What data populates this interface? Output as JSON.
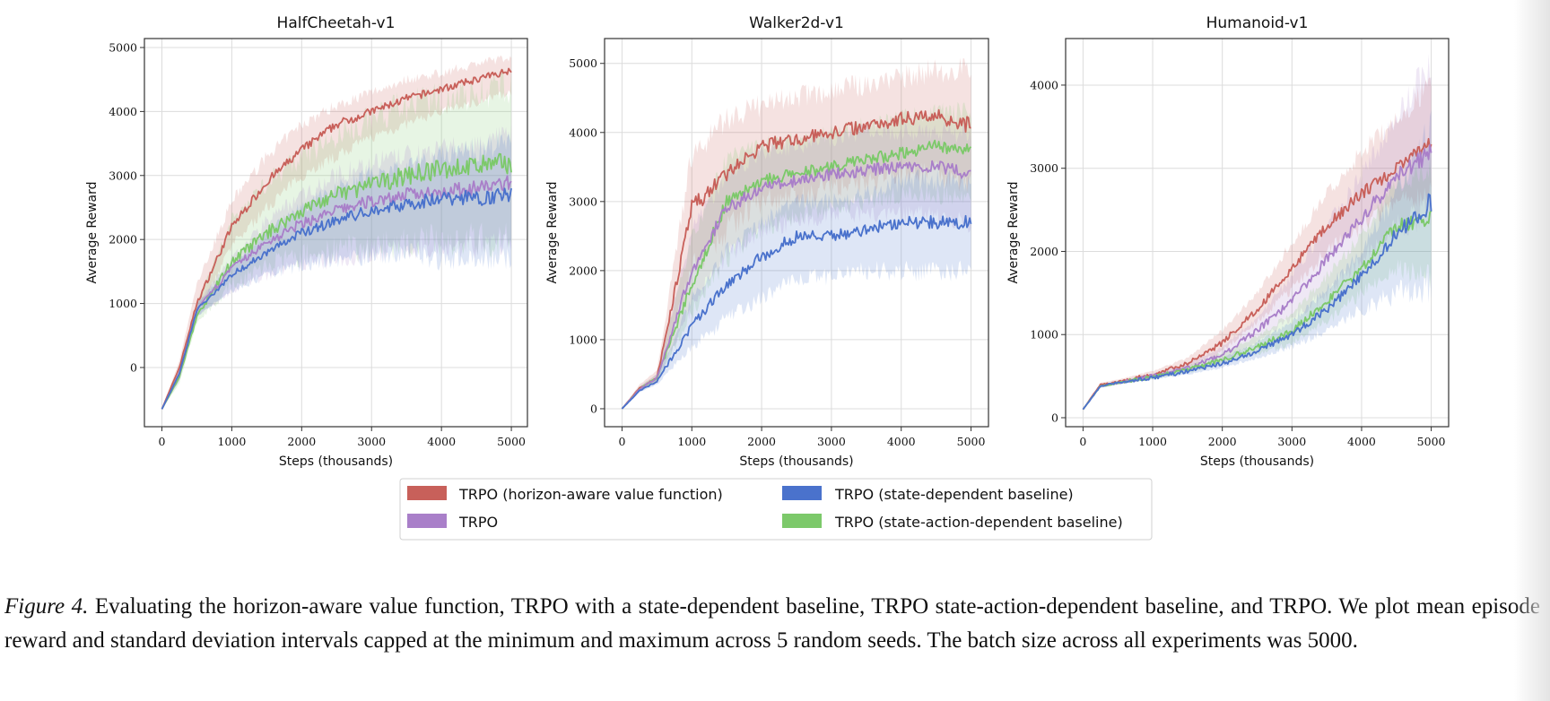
{
  "colors": {
    "horizon": "#c8605a",
    "trpo": "#a97fc9",
    "state": "#4a72cc",
    "state_action": "#7cc96a"
  },
  "legend": {
    "items": [
      {
        "key": "horizon",
        "label": "TRPO (horizon-aware value function)"
      },
      {
        "key": "trpo",
        "label": "TRPO"
      },
      {
        "key": "state",
        "label": "TRPO (state-dependent baseline)"
      },
      {
        "key": "state_action",
        "label": "TRPO (state-action-dependent baseline)"
      }
    ]
  },
  "caption": {
    "label": "Figure 4.",
    "text": "Evaluating the horizon-aware value function, TRPO with a state-dependent baseline, TRPO state-action-dependent baseline, and TRPO. We plot mean episode reward and standard deviation intervals capped at the minimum and maximum across 5 random seeds. The batch size across all experiments was 5000."
  },
  "chart_data": [
    {
      "type": "line",
      "title": "HalfCheetah-v1",
      "xlabel": "Steps (thousands)",
      "ylabel": "Average Reward",
      "xlim": [
        -250,
        5230
      ],
      "ylim": [
        -925,
        5140
      ],
      "xticks": [
        0,
        1000,
        2000,
        3000,
        4000,
        5000
      ],
      "yticks": [
        0,
        1000,
        2000,
        3000,
        4000,
        5000
      ],
      "grid": true,
      "x": [
        0,
        250,
        500,
        1000,
        1500,
        2000,
        2500,
        3000,
        3500,
        4000,
        4500,
        5000
      ],
      "series": [
        {
          "key": "horizon",
          "name": "TRPO (horizon-aware value function)",
          "mean": [
            -650,
            0,
            1000,
            2200,
            2900,
            3400,
            3800,
            4000,
            4200,
            4350,
            4500,
            4650
          ],
          "lower": [
            -650,
            -100,
            800,
            1900,
            2500,
            3000,
            3300,
            3600,
            3800,
            4000,
            4150,
            4300
          ],
          "upper": [
            -650,
            100,
            1300,
            2600,
            3300,
            3800,
            4100,
            4300,
            4500,
            4600,
            4750,
            4850
          ]
        },
        {
          "key": "state_action",
          "name": "TRPO (state-action-dependent baseline)",
          "mean": [
            -650,
            -150,
            800,
            1650,
            2100,
            2450,
            2700,
            2850,
            3000,
            3100,
            3150,
            3200
          ],
          "lower": [
            -650,
            -250,
            700,
            1300,
            1600,
            1750,
            1850,
            1900,
            1950,
            2000,
            2000,
            2000
          ],
          "upper": [
            -650,
            -50,
            1000,
            2300,
            2900,
            3300,
            3600,
            3900,
            4100,
            4200,
            4300,
            4400
          ]
        },
        {
          "key": "trpo",
          "name": "TRPO",
          "mean": [
            -650,
            -100,
            900,
            1550,
            1950,
            2250,
            2450,
            2600,
            2700,
            2750,
            2800,
            2900
          ],
          "lower": [
            -650,
            -200,
            800,
            1200,
            1450,
            1600,
            1700,
            1800,
            1850,
            1900,
            1900,
            1950
          ],
          "upper": [
            -650,
            0,
            1000,
            1700,
            2300,
            2700,
            3000,
            3200,
            3300,
            3400,
            3500,
            3600
          ]
        },
        {
          "key": "state",
          "name": "TRPO (state-dependent baseline)",
          "mean": [
            -650,
            -100,
            900,
            1450,
            1800,
            2100,
            2300,
            2450,
            2550,
            2650,
            2650,
            2700
          ],
          "lower": [
            -650,
            -200,
            800,
            1200,
            1450,
            1600,
            1700,
            1750,
            1800,
            1700,
            1700,
            1750
          ],
          "upper": [
            -650,
            0,
            1000,
            1600,
            2100,
            2500,
            2800,
            3000,
            3100,
            3300,
            3400,
            3500
          ]
        }
      ]
    },
    {
      "type": "line",
      "title": "Walker2d-v1",
      "xlabel": "Steps (thousands)",
      "ylabel": "Average Reward",
      "xlim": [
        -250,
        5250
      ],
      "ylim": [
        -260,
        5360
      ],
      "xticks": [
        0,
        1000,
        2000,
        3000,
        4000,
        5000
      ],
      "yticks": [
        0,
        1000,
        2000,
        3000,
        4000,
        5000
      ],
      "grid": true,
      "x": [
        0,
        250,
        500,
        1000,
        1500,
        2000,
        2500,
        3000,
        3500,
        4000,
        4500,
        5000
      ],
      "series": [
        {
          "key": "horizon",
          "name": "TRPO (horizon-aware value function)",
          "mean": [
            0,
            300,
            450,
            2900,
            3400,
            3800,
            3900,
            4000,
            4100,
            4200,
            4250,
            4100
          ],
          "lower": [
            0,
            250,
            400,
            2000,
            2600,
            3000,
            3100,
            3200,
            3300,
            3400,
            3400,
            3300
          ],
          "upper": [
            0,
            350,
            550,
            3700,
            4200,
            4400,
            4500,
            4600,
            4700,
            4800,
            4900,
            4900
          ]
        },
        {
          "key": "state_action",
          "name": "TRPO (state-action-dependent baseline)",
          "mean": [
            0,
            280,
            450,
            1800,
            3000,
            3300,
            3400,
            3500,
            3600,
            3700,
            3800,
            3750
          ],
          "lower": [
            0,
            250,
            400,
            1400,
            2200,
            2600,
            2800,
            2900,
            3000,
            3100,
            3100,
            3100
          ],
          "upper": [
            0,
            320,
            500,
            2500,
            3600,
            3800,
            3900,
            4000,
            4100,
            4200,
            4300,
            4300
          ]
        },
        {
          "key": "trpo",
          "name": "TRPO",
          "mean": [
            0,
            280,
            450,
            2000,
            2900,
            3200,
            3300,
            3400,
            3450,
            3500,
            3500,
            3400
          ],
          "lower": [
            0,
            250,
            400,
            1500,
            2200,
            2600,
            2700,
            2800,
            2800,
            2800,
            2800,
            2700
          ],
          "upper": [
            0,
            320,
            500,
            2600,
            3400,
            3700,
            3800,
            3900,
            4000,
            4000,
            4000,
            4000
          ]
        },
        {
          "key": "state",
          "name": "TRPO (state-dependent baseline)",
          "mean": [
            0,
            260,
            400,
            1200,
            1800,
            2200,
            2500,
            2500,
            2600,
            2700,
            2700,
            2700
          ],
          "lower": [
            0,
            240,
            350,
            900,
            1300,
            1600,
            1900,
            1900,
            2000,
            2000,
            2000,
            2000
          ],
          "upper": [
            0,
            300,
            450,
            1600,
            2300,
            2700,
            3000,
            3000,
            3100,
            3300,
            3300,
            3300
          ]
        }
      ]
    },
    {
      "type": "line",
      "title": "Humanoid-v1",
      "xlabel": "Steps (thousands)",
      "ylabel": "Average Reward",
      "xlim": [
        -250,
        5250
      ],
      "ylim": [
        -108,
        4560
      ],
      "xticks": [
        0,
        1000,
        2000,
        3000,
        4000,
        5000
      ],
      "yticks": [
        0,
        1000,
        2000,
        3000,
        4000
      ],
      "grid": true,
      "x": [
        0,
        250,
        500,
        1000,
        1500,
        2000,
        2500,
        3000,
        3500,
        4000,
        4500,
        5000
      ],
      "series": [
        {
          "key": "horizon",
          "name": "TRPO (horizon-aware value function)",
          "mean": [
            100,
            400,
            430,
            520,
            650,
            900,
            1300,
            1800,
            2300,
            2700,
            3000,
            3300
          ],
          "lower": [
            100,
            370,
            410,
            490,
            600,
            800,
            1150,
            1550,
            2000,
            2300,
            2600,
            2700
          ],
          "upper": [
            100,
            420,
            460,
            560,
            720,
            1050,
            1500,
            2100,
            2700,
            3200,
            3600,
            4000
          ]
        },
        {
          "key": "trpo",
          "name": "TRPO",
          "mean": [
            100,
            380,
            420,
            500,
            600,
            750,
            1050,
            1400,
            1900,
            2400,
            2900,
            3200
          ],
          "lower": [
            100,
            360,
            400,
            480,
            560,
            680,
            900,
            1200,
            1500,
            1900,
            2300,
            2500
          ],
          "upper": [
            100,
            400,
            440,
            530,
            650,
            850,
            1200,
            1700,
            2300,
            2900,
            3600,
            4300
          ]
        },
        {
          "key": "state_action",
          "name": "TRPO (state-action-dependent baseline)",
          "mean": [
            100,
            380,
            420,
            490,
            580,
            700,
            850,
            1050,
            1400,
            1800,
            2300,
            2400
          ],
          "lower": [
            100,
            360,
            400,
            470,
            540,
            640,
            760,
            900,
            1150,
            1500,
            1800,
            1700
          ],
          "upper": [
            100,
            400,
            440,
            510,
            620,
            780,
            980,
            1250,
            1700,
            2200,
            2800,
            3000
          ]
        },
        {
          "key": "state",
          "name": "TRPO (state-dependent baseline)",
          "mean": [
            100,
            380,
            420,
            480,
            560,
            650,
            800,
            1000,
            1300,
            1700,
            2200,
            2600
          ],
          "lower": [
            100,
            360,
            400,
            460,
            520,
            600,
            720,
            850,
            1050,
            1300,
            1500,
            1600
          ],
          "upper": [
            100,
            400,
            440,
            500,
            600,
            720,
            900,
            1150,
            1550,
            2000,
            2700,
            3500
          ]
        }
      ]
    }
  ]
}
